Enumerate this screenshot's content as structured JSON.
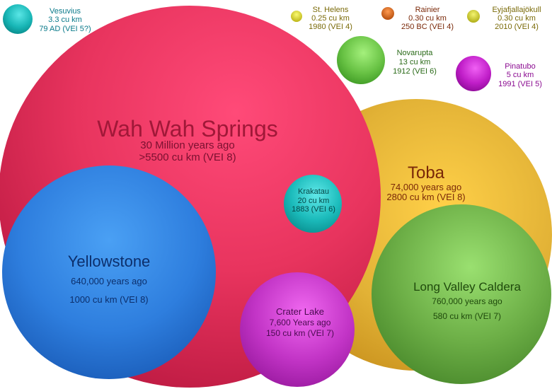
{
  "volcanoes": {
    "wah_wah": {
      "name": "Wah Wah Springs",
      "age": "30 Million years ago",
      "volume": ">5500 cu km (VEI 8)"
    },
    "toba": {
      "name": "Toba",
      "age": "74,000 years ago",
      "volume": "2800 cu km (VEI 8)"
    },
    "yellowstone": {
      "name": "Yellowstone",
      "age": "640,000 years ago",
      "volume": "1000 cu km (VEI 8)"
    },
    "long_valley": {
      "name": "Long Valley Caldera",
      "age": "760,000 years ago",
      "volume": "580 cu km (VEI 7)"
    },
    "crater_lake": {
      "name": "Crater Lake",
      "age": "7,600 Years ago",
      "volume": "150 cu km (VEI 7)"
    },
    "krakatau": {
      "name": "Krakatau",
      "volume": "20 cu km",
      "year": "1883 (VEI 6)"
    },
    "novarupta": {
      "name": "Novarupta",
      "volume": "13 cu km",
      "year": "1912 (VEI 6)"
    },
    "pinatubo": {
      "name": "Pinatubo",
      "volume": "5 cu km",
      "year": "1991 (VEI 5)"
    },
    "vesuvius": {
      "name": "Vesuvius",
      "volume": "3.3 cu km",
      "year": "79 AD (VEI 5?)"
    },
    "st_helens": {
      "name": "St. Helens",
      "volume": "0.25 cu km",
      "year": "1980 (VEI 4)"
    },
    "rainier": {
      "name": "Rainier",
      "volume": "0.30 cu km",
      "year": "250 BC (VEI 4)"
    },
    "eyjafjallajokull": {
      "name": "Eyjafjallajökull",
      "volume": "0.30 cu km",
      "year": "2010 (VEI 4)"
    }
  },
  "colors": {
    "wah_wah": "#e8345e",
    "toba": "#e0b030",
    "yellowstone": "#2f7fdc",
    "long_valley": "#74b848",
    "crater_lake": "#c632c8",
    "krakatau": "#1ec0c0",
    "novarupta": "#6cc448",
    "pinatubo": "#c020c8",
    "vesuvius": "#18b8b8",
    "st_helens": "#d8d020",
    "rainier": "#d86010",
    "eyjafjallajokull": "#c8c820"
  }
}
